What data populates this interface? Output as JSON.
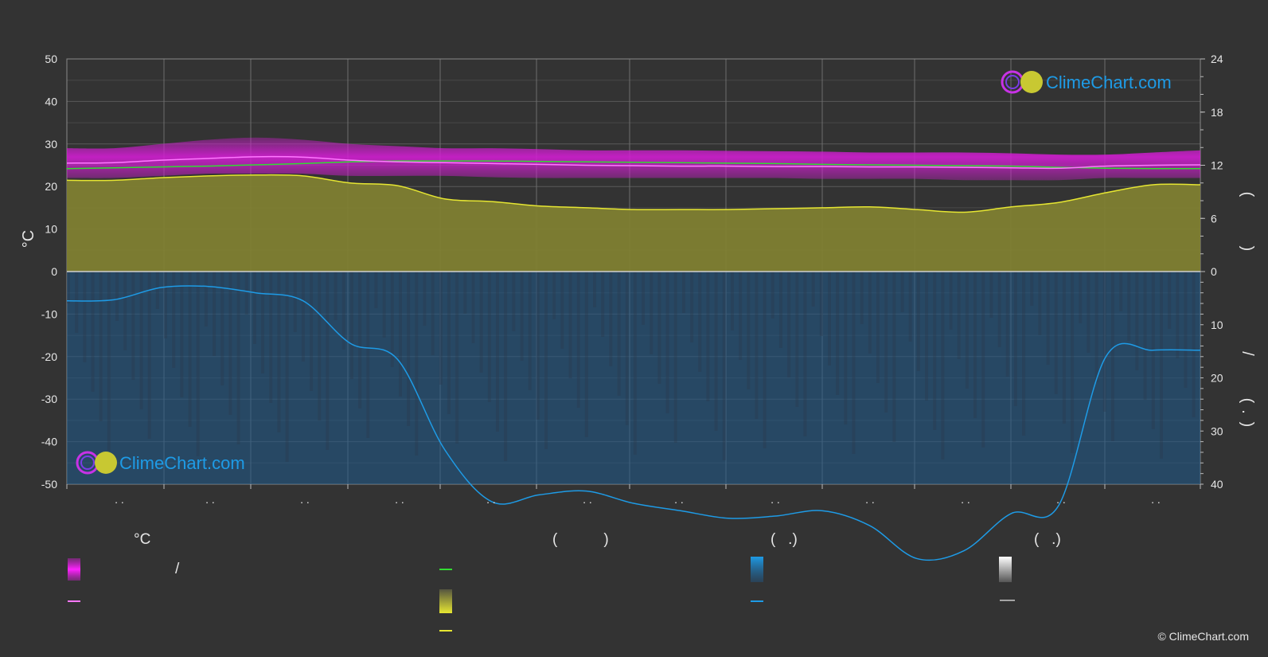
{
  "chart_data": {
    "type": "area",
    "left_axis": {
      "label": "°C",
      "ticks": [
        50,
        40,
        30,
        20,
        10,
        0,
        -10,
        -20,
        -30,
        -40,
        -50
      ],
      "range": [
        -50,
        50
      ]
    },
    "right_axis_top": {
      "ticks": [
        24,
        18,
        12,
        6,
        0
      ],
      "range": [
        0,
        24
      ]
    },
    "right_axis_bottom": {
      "ticks": [
        0,
        10,
        20,
        30,
        40
      ],
      "range": [
        0,
        40
      ]
    },
    "right_axis_title_glyphs": [
      "(",
      ")",
      "/",
      "(",
      ".",
      ")"
    ],
    "x_tick_labels": [
      ". .",
      ". .",
      ". .",
      ". .",
      ". .",
      ". .",
      ". .",
      ". .",
      ". .",
      ". .",
      ". .",
      ". ."
    ],
    "x": [
      0,
      0.5,
      1,
      1.5,
      2,
      2.5,
      3,
      3.5,
      4,
      4.5,
      5,
      5.5,
      6,
      6.5,
      7,
      7.5,
      8,
      8.5,
      9,
      9.5,
      10,
      10.5,
      11,
      11.5,
      12
    ],
    "series": [
      {
        "key": "temp_mean_pink",
        "values": [
          25.5,
          25.6,
          26.2,
          26.6,
          27.0,
          26.9,
          26.2,
          25.8,
          25.6,
          25.4,
          25.2,
          25.0,
          24.9,
          24.8,
          24.8,
          24.7,
          24.7,
          24.6,
          24.6,
          24.5,
          24.4,
          24.3,
          24.8,
          25.0,
          25.1
        ]
      },
      {
        "key": "temp_green",
        "values": [
          24.2,
          24.4,
          24.6,
          24.8,
          25.1,
          25.4,
          25.8,
          26.0,
          26.0,
          26.0,
          25.9,
          25.8,
          25.7,
          25.6,
          25.5,
          25.4,
          25.2,
          25.1,
          25.0,
          24.9,
          24.8,
          24.5,
          24.3,
          24.2,
          24.2
        ]
      },
      {
        "key": "daylight_yellow_hours",
        "values": [
          10.3,
          10.3,
          10.6,
          10.8,
          10.9,
          10.8,
          10.0,
          9.7,
          8.2,
          7.9,
          7.4,
          7.2,
          7.0,
          7.0,
          7.0,
          7.1,
          7.2,
          7.3,
          7.0,
          6.7,
          7.3,
          7.8,
          8.9,
          9.8,
          9.8
        ]
      },
      {
        "key": "rain_blue_mm",
        "values": [
          5.5,
          5.3,
          3.0,
          2.8,
          4.0,
          5.5,
          13.5,
          16.5,
          33.5,
          43.3,
          42.0,
          41.3,
          43.6,
          45.0,
          46.4,
          46.0,
          45.0,
          47.8,
          54.0,
          52.5,
          45.5,
          44.0,
          16.0,
          14.8,
          14.8
        ]
      }
    ],
    "band_pink": {
      "upper": [
        29,
        29,
        30,
        31,
        31.5,
        31,
        30,
        29.5,
        29,
        29,
        28.8,
        28.5,
        28.5,
        28.5,
        28.4,
        28.3,
        28.2,
        28,
        28,
        28,
        27.8,
        27.5,
        27.5,
        28.0,
        28.5
      ],
      "lower": [
        22,
        22,
        22.5,
        23,
        23,
        23,
        22.5,
        22.5,
        22.5,
        22.2,
        22,
        22,
        22,
        22,
        22,
        22,
        21.8,
        21.8,
        21.8,
        21.5,
        21.5,
        21.5,
        22,
        22,
        22
      ]
    },
    "colors": {
      "background": "#333333",
      "pink_band": "#d21ed2",
      "pink_line": "#ff78ff",
      "green_line": "#32dc32",
      "yellow_fill": "#7f7f32",
      "yellow_line": "#e6e632",
      "blue_fill": "#1e5a8c",
      "blue_line": "#1e9be6",
      "grid": "#5a5a5a"
    }
  },
  "legend": {
    "headers": [
      "°C",
      "(           )",
      "(   .)",
      "(   .)"
    ],
    "slash": "/",
    "dash": "—"
  },
  "logo": {
    "text": "ClimeChart.com"
  },
  "copyright": "© ClimeChart.com"
}
